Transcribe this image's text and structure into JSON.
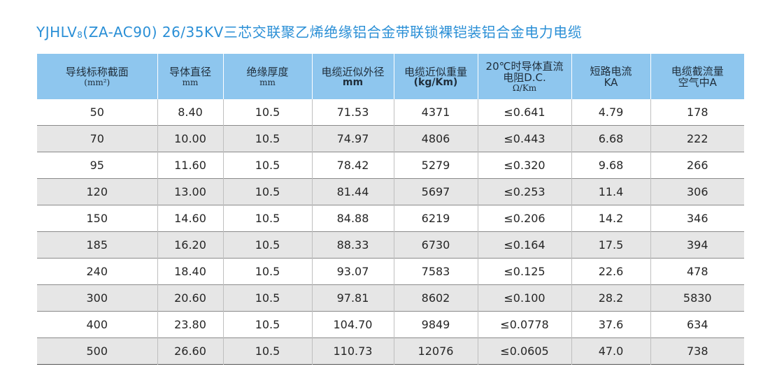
{
  "title": {
    "prefix": "YJHLV",
    "sub": "8",
    "suffix": "(ZA-AC90)   26/35KV三芯交联聚乙烯绝缘铝合金带联锁裸铠装铝合金电力电缆"
  },
  "colors": {
    "title": "#2a8fd6",
    "header_bg": "#8ec6ee",
    "row_alt_bg": "#e6e6e6"
  },
  "headers": [
    {
      "line1": "导线标称截面",
      "line2": "(mm²)",
      "line3": ""
    },
    {
      "line1": "导体直径",
      "line2": "mm",
      "line3": ""
    },
    {
      "line1": "绝缘厚度",
      "line2": "mm",
      "line3": ""
    },
    {
      "line1": "电缆近似外径",
      "line2": "mm",
      "line3": ""
    },
    {
      "line1": "电缆近似重量",
      "line2": "(kg/Km)",
      "line3": ""
    },
    {
      "line1": "20℃时导体直流",
      "line2": "电阻D.C.",
      "line3": "Ω/Km"
    },
    {
      "line1": "短路电流",
      "line2": "KA",
      "line3": ""
    },
    {
      "line1": "电缆截流量",
      "line2": "空气中A",
      "line3": ""
    }
  ],
  "rows": [
    [
      "50",
      "8.40",
      "10.5",
      "71.53",
      "4371",
      "≤0.641",
      "4.79",
      "178"
    ],
    [
      "70",
      "10.00",
      "10.5",
      "74.97",
      "4806",
      "≤0.443",
      "6.68",
      "222"
    ],
    [
      "95",
      "11.60",
      "10.5",
      "78.42",
      "5279",
      "≤0.320",
      "9.68",
      "266"
    ],
    [
      "120",
      "13.00",
      "10.5",
      "81.44",
      "5697",
      "≤0.253",
      "11.4",
      "306"
    ],
    [
      "150",
      "14.60",
      "10.5",
      "84.88",
      "6219",
      "≤0.206",
      "14.2",
      "346"
    ],
    [
      "185",
      "16.20",
      "10.5",
      "88.33",
      "6730",
      "≤0.164",
      "17.5",
      "394"
    ],
    [
      "240",
      "18.40",
      "10.5",
      "93.07",
      "7583",
      "≤0.125",
      "22.6",
      "478"
    ],
    [
      "300",
      "20.60",
      "10.5",
      "97.81",
      "8602",
      "≤0.100",
      "28.2",
      "5830"
    ],
    [
      "400",
      "23.80",
      "10.5",
      "104.70",
      "9849",
      "≤0.0778",
      "37.6",
      "634"
    ],
    [
      "500",
      "26.60",
      "10.5",
      "110.73",
      "12076",
      "≤0.0605",
      "47.0",
      "738"
    ]
  ]
}
